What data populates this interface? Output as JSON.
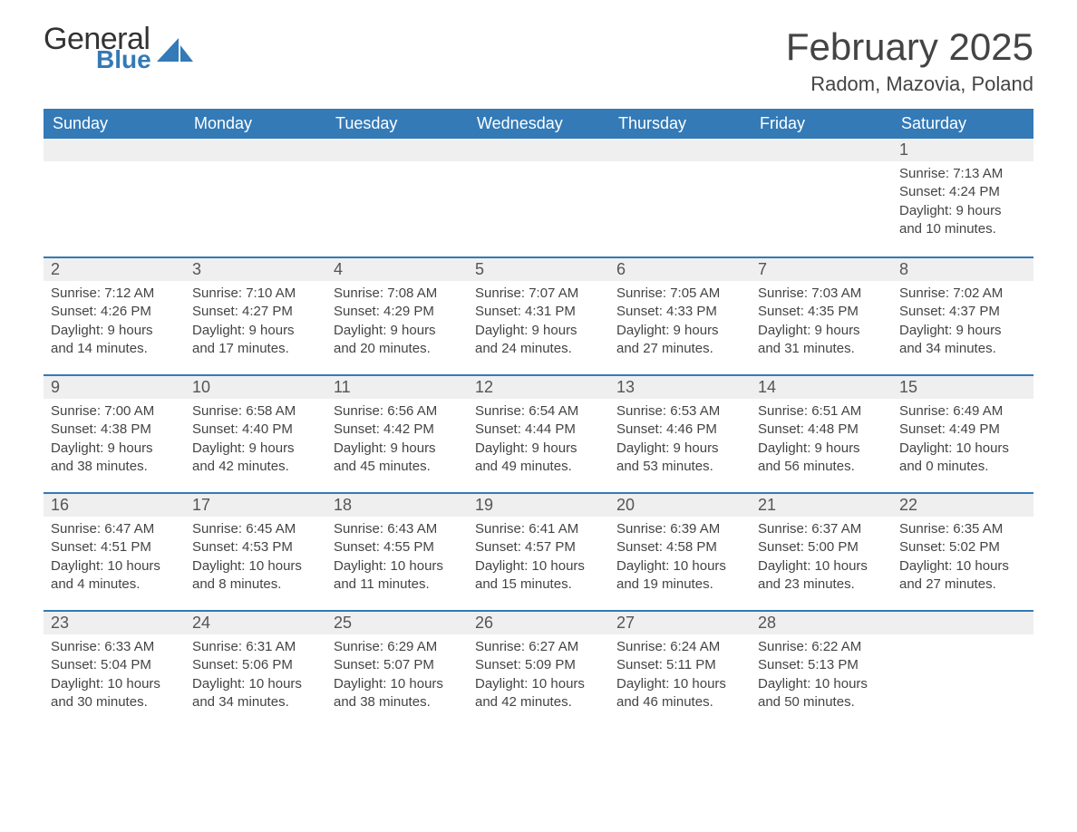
{
  "brand": {
    "word1": "General",
    "word2": "Blue",
    "logo_color": "#337ab7"
  },
  "title": "February 2025",
  "location": "Radom, Mazovia, Poland",
  "colors": {
    "header_bg": "#337ab7",
    "header_text": "#ffffff",
    "daynum_bg": "#efefef",
    "divider": "#337ab7",
    "body_text": "#444444",
    "background": "#ffffff"
  },
  "fonts": {
    "title_size_pt": 42,
    "location_size_pt": 22,
    "header_size_pt": 18,
    "body_size_pt": 15
  },
  "calendar": {
    "type": "table",
    "columns": [
      "Sunday",
      "Monday",
      "Tuesday",
      "Wednesday",
      "Thursday",
      "Friday",
      "Saturday"
    ],
    "weeks": [
      [
        null,
        null,
        null,
        null,
        null,
        null,
        {
          "n": "1",
          "sunrise": "Sunrise: 7:13 AM",
          "sunset": "Sunset: 4:24 PM",
          "day1": "Daylight: 9 hours",
          "day2": "and 10 minutes."
        }
      ],
      [
        {
          "n": "2",
          "sunrise": "Sunrise: 7:12 AM",
          "sunset": "Sunset: 4:26 PM",
          "day1": "Daylight: 9 hours",
          "day2": "and 14 minutes."
        },
        {
          "n": "3",
          "sunrise": "Sunrise: 7:10 AM",
          "sunset": "Sunset: 4:27 PM",
          "day1": "Daylight: 9 hours",
          "day2": "and 17 minutes."
        },
        {
          "n": "4",
          "sunrise": "Sunrise: 7:08 AM",
          "sunset": "Sunset: 4:29 PM",
          "day1": "Daylight: 9 hours",
          "day2": "and 20 minutes."
        },
        {
          "n": "5",
          "sunrise": "Sunrise: 7:07 AM",
          "sunset": "Sunset: 4:31 PM",
          "day1": "Daylight: 9 hours",
          "day2": "and 24 minutes."
        },
        {
          "n": "6",
          "sunrise": "Sunrise: 7:05 AM",
          "sunset": "Sunset: 4:33 PM",
          "day1": "Daylight: 9 hours",
          "day2": "and 27 minutes."
        },
        {
          "n": "7",
          "sunrise": "Sunrise: 7:03 AM",
          "sunset": "Sunset: 4:35 PM",
          "day1": "Daylight: 9 hours",
          "day2": "and 31 minutes."
        },
        {
          "n": "8",
          "sunrise": "Sunrise: 7:02 AM",
          "sunset": "Sunset: 4:37 PM",
          "day1": "Daylight: 9 hours",
          "day2": "and 34 minutes."
        }
      ],
      [
        {
          "n": "9",
          "sunrise": "Sunrise: 7:00 AM",
          "sunset": "Sunset: 4:38 PM",
          "day1": "Daylight: 9 hours",
          "day2": "and 38 minutes."
        },
        {
          "n": "10",
          "sunrise": "Sunrise: 6:58 AM",
          "sunset": "Sunset: 4:40 PM",
          "day1": "Daylight: 9 hours",
          "day2": "and 42 minutes."
        },
        {
          "n": "11",
          "sunrise": "Sunrise: 6:56 AM",
          "sunset": "Sunset: 4:42 PM",
          "day1": "Daylight: 9 hours",
          "day2": "and 45 minutes."
        },
        {
          "n": "12",
          "sunrise": "Sunrise: 6:54 AM",
          "sunset": "Sunset: 4:44 PM",
          "day1": "Daylight: 9 hours",
          "day2": "and 49 minutes."
        },
        {
          "n": "13",
          "sunrise": "Sunrise: 6:53 AM",
          "sunset": "Sunset: 4:46 PM",
          "day1": "Daylight: 9 hours",
          "day2": "and 53 minutes."
        },
        {
          "n": "14",
          "sunrise": "Sunrise: 6:51 AM",
          "sunset": "Sunset: 4:48 PM",
          "day1": "Daylight: 9 hours",
          "day2": "and 56 minutes."
        },
        {
          "n": "15",
          "sunrise": "Sunrise: 6:49 AM",
          "sunset": "Sunset: 4:49 PM",
          "day1": "Daylight: 10 hours",
          "day2": "and 0 minutes."
        }
      ],
      [
        {
          "n": "16",
          "sunrise": "Sunrise: 6:47 AM",
          "sunset": "Sunset: 4:51 PM",
          "day1": "Daylight: 10 hours",
          "day2": "and 4 minutes."
        },
        {
          "n": "17",
          "sunrise": "Sunrise: 6:45 AM",
          "sunset": "Sunset: 4:53 PM",
          "day1": "Daylight: 10 hours",
          "day2": "and 8 minutes."
        },
        {
          "n": "18",
          "sunrise": "Sunrise: 6:43 AM",
          "sunset": "Sunset: 4:55 PM",
          "day1": "Daylight: 10 hours",
          "day2": "and 11 minutes."
        },
        {
          "n": "19",
          "sunrise": "Sunrise: 6:41 AM",
          "sunset": "Sunset: 4:57 PM",
          "day1": "Daylight: 10 hours",
          "day2": "and 15 minutes."
        },
        {
          "n": "20",
          "sunrise": "Sunrise: 6:39 AM",
          "sunset": "Sunset: 4:58 PM",
          "day1": "Daylight: 10 hours",
          "day2": "and 19 minutes."
        },
        {
          "n": "21",
          "sunrise": "Sunrise: 6:37 AM",
          "sunset": "Sunset: 5:00 PM",
          "day1": "Daylight: 10 hours",
          "day2": "and 23 minutes."
        },
        {
          "n": "22",
          "sunrise": "Sunrise: 6:35 AM",
          "sunset": "Sunset: 5:02 PM",
          "day1": "Daylight: 10 hours",
          "day2": "and 27 minutes."
        }
      ],
      [
        {
          "n": "23",
          "sunrise": "Sunrise: 6:33 AM",
          "sunset": "Sunset: 5:04 PM",
          "day1": "Daylight: 10 hours",
          "day2": "and 30 minutes."
        },
        {
          "n": "24",
          "sunrise": "Sunrise: 6:31 AM",
          "sunset": "Sunset: 5:06 PM",
          "day1": "Daylight: 10 hours",
          "day2": "and 34 minutes."
        },
        {
          "n": "25",
          "sunrise": "Sunrise: 6:29 AM",
          "sunset": "Sunset: 5:07 PM",
          "day1": "Daylight: 10 hours",
          "day2": "and 38 minutes."
        },
        {
          "n": "26",
          "sunrise": "Sunrise: 6:27 AM",
          "sunset": "Sunset: 5:09 PM",
          "day1": "Daylight: 10 hours",
          "day2": "and 42 minutes."
        },
        {
          "n": "27",
          "sunrise": "Sunrise: 6:24 AM",
          "sunset": "Sunset: 5:11 PM",
          "day1": "Daylight: 10 hours",
          "day2": "and 46 minutes."
        },
        {
          "n": "28",
          "sunrise": "Sunrise: 6:22 AM",
          "sunset": "Sunset: 5:13 PM",
          "day1": "Daylight: 10 hours",
          "day2": "and 50 minutes."
        },
        null
      ]
    ]
  }
}
